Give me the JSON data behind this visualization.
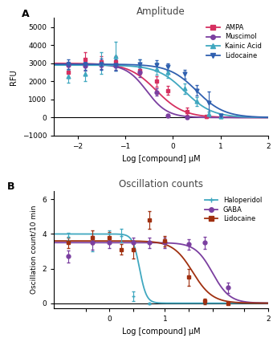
{
  "panel_A": {
    "title": "Amplitude",
    "xlabel": "Log [compound] μM",
    "ylabel": "RFU",
    "xlim": [
      -2.5,
      2.0
    ],
    "ylim": [
      -1000,
      5500
    ],
    "yticks": [
      -1000,
      0,
      1000,
      2000,
      3000,
      4000,
      5000
    ],
    "xticks": [
      -2,
      -1,
      0,
      1,
      2
    ],
    "label": "A",
    "series": [
      {
        "name": "AMPA",
        "color": "#d63060",
        "marker": "s",
        "top": 3000,
        "bottom": 0,
        "ec50": -0.35,
        "hill": 1.5,
        "data_x": [
          -2.2,
          -1.85,
          -1.5,
          -1.2,
          -0.7,
          -0.35,
          -0.1,
          0.3,
          0.7
        ],
        "data_y": [
          2500,
          3200,
          3100,
          3100,
          2600,
          2000,
          1500,
          350,
          50
        ],
        "data_yerr": [
          300,
          400,
          300,
          300,
          250,
          300,
          250,
          200,
          80
        ]
      },
      {
        "name": "Muscimol",
        "color": "#7b3fa0",
        "marker": "o",
        "top": 2950,
        "bottom": 0,
        "ec50": -0.55,
        "hill": 2.0,
        "data_x": [
          -2.2,
          -1.85,
          -1.5,
          -1.2,
          -0.7,
          -0.35,
          -0.1,
          0.3
        ],
        "data_y": [
          2900,
          2850,
          2900,
          2850,
          2500,
          1400,
          100,
          0
        ],
        "data_yerr": [
          200,
          250,
          200,
          200,
          250,
          200,
          100,
          80
        ]
      },
      {
        "name": "Kainic Acid",
        "color": "#40a8c0",
        "marker": "^",
        "top": 2900,
        "bottom": 0,
        "ec50": 0.25,
        "hill": 1.5,
        "data_x": [
          -2.2,
          -1.85,
          -1.5,
          -1.2,
          -0.7,
          -0.35,
          -0.1,
          0.25,
          0.5,
          0.75,
          1.0
        ],
        "data_y": [
          2300,
          2400,
          3000,
          3400,
          2900,
          2700,
          2500,
          1600,
          900,
          200,
          50
        ],
        "data_yerr": [
          350,
          400,
          600,
          800,
          300,
          350,
          300,
          300,
          250,
          150,
          80
        ]
      },
      {
        "name": "Lidocaine",
        "color": "#3060b0",
        "marker": "v",
        "top": 2950,
        "bottom": 0,
        "ec50": 0.5,
        "hill": 1.5,
        "data_x": [
          -2.2,
          -1.85,
          -1.5,
          -1.2,
          -0.7,
          -0.35,
          -0.1,
          0.25,
          0.5,
          0.75,
          1.0
        ],
        "data_y": [
          2950,
          2950,
          2950,
          2900,
          2950,
          2900,
          2800,
          2400,
          1500,
          800,
          100
        ],
        "data_yerr": [
          250,
          300,
          300,
          300,
          250,
          250,
          200,
          250,
          300,
          650,
          100
        ]
      }
    ]
  },
  "panel_B": {
    "title": "Oscillation counts",
    "xlabel": "Log [compound] μM",
    "ylabel": "Oscillation count/10 min",
    "xlim": [
      -0.7,
      2.0
    ],
    "ylim": [
      -0.3,
      6.5
    ],
    "yticks": [
      0,
      2,
      4,
      6
    ],
    "xticks": [
      -0.301,
      0.0,
      0.301,
      0.699,
      1.0,
      1.301,
      1.699,
      2.0
    ],
    "xticklabels": [
      "",
      "0",
      "",
      "1",
      "",
      "",
      "",
      "2"
    ],
    "label": "B",
    "series": [
      {
        "name": "Haloperidol",
        "color": "#40a8c0",
        "marker": "+",
        "top": 4.0,
        "bottom": 0.0,
        "ec50": 0.38,
        "hill": 10.0,
        "data_x": [
          -0.52,
          -0.22,
          0.0,
          0.15,
          0.3,
          0.5
        ],
        "data_y": [
          3.85,
          3.5,
          4.0,
          3.9,
          0.4,
          0.0
        ],
        "data_yerr": [
          0.2,
          0.5,
          0.2,
          0.4,
          0.3,
          0.05
        ]
      },
      {
        "name": "GABA",
        "color": "#7b3fa0",
        "marker": "o",
        "top": 3.5,
        "bottom": 0.0,
        "ec50": 1.3,
        "hill": 4.0,
        "data_x": [
          -0.52,
          -0.22,
          0.0,
          0.3,
          0.5,
          0.7,
          1.0,
          1.2,
          1.5
        ],
        "data_y": [
          2.7,
          3.5,
          3.5,
          3.5,
          3.5,
          3.5,
          3.4,
          3.5,
          0.9
        ],
        "data_yerr": [
          0.35,
          0.4,
          0.3,
          0.3,
          0.3,
          0.3,
          0.3,
          0.35,
          0.3
        ]
      },
      {
        "name": "Lidocaine",
        "color": "#a03010",
        "marker": "s",
        "top": 3.6,
        "bottom": 0.0,
        "ec50": 1.05,
        "hill": 3.5,
        "data_x": [
          -0.52,
          -0.22,
          0.0,
          0.15,
          0.3,
          0.5,
          0.7,
          1.0,
          1.2,
          1.5
        ],
        "data_y": [
          3.5,
          3.8,
          3.8,
          3.1,
          3.1,
          4.8,
          3.6,
          1.5,
          0.1,
          0.0
        ],
        "data_yerr": [
          0.3,
          0.4,
          0.3,
          0.3,
          0.5,
          0.5,
          0.3,
          0.5,
          0.15,
          0.05
        ]
      }
    ]
  }
}
